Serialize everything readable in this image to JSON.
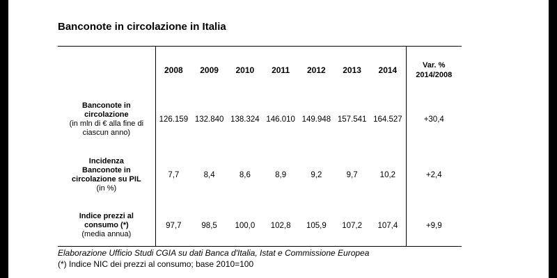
{
  "title": "Banconote in circolazione in Italia",
  "header": {
    "years": [
      "2008",
      "2009",
      "2010",
      "2011",
      "2012",
      "2013",
      "2014"
    ],
    "var_label_line1": "Var. %",
    "var_label_line2": "2014/2008"
  },
  "rows": [
    {
      "label_main_1": "Banconote in",
      "label_main_2": "circolazione",
      "label_sub_1": "(in mln di € alla fine di",
      "label_sub_2": "ciascun anno)",
      "values": [
        "126.159",
        "132.840",
        "138.324",
        "146.010",
        "149.948",
        "157.541",
        "164.527"
      ],
      "var": "+30,4"
    },
    {
      "label_main_1": "Incidenza",
      "label_main_2": "Banconote in",
      "label_main_3": "circolazione su PIL",
      "label_sub_1": "(in %)",
      "values": [
        "7,7",
        "8,4",
        "8,6",
        "8,9",
        "9,2",
        "9,7",
        "10,2"
      ],
      "var": "+2,4"
    },
    {
      "label_main_1": "Indice prezzi al",
      "label_main_2": "consumo (*)",
      "label_sub_1": "(media annua)",
      "values": [
        "97,7",
        "98,5",
        "100,0",
        "102,8",
        "105,9",
        "107,2",
        "107,4"
      ],
      "var": "+9,9"
    }
  ],
  "footnotes": {
    "source": "Elaborazione Ufficio Studi CGIA su dati Banca d'Italia, Istat e Commissione Europea",
    "note": "(*) Indice NIC dei prezzi al consumo; base 2010=100"
  }
}
